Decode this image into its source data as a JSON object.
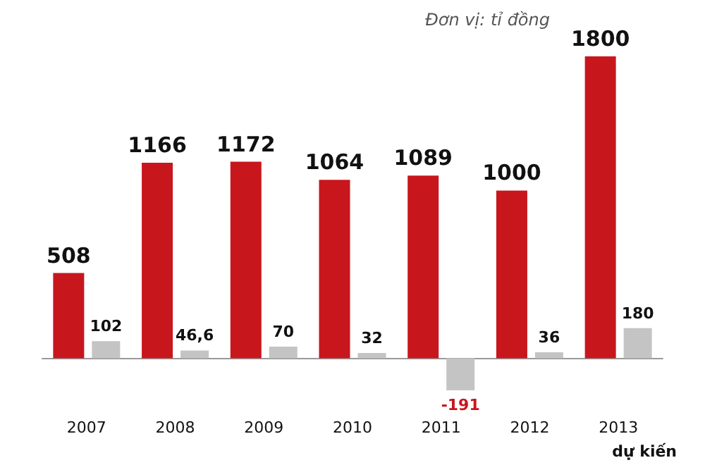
{
  "chart_data": {
    "type": "bar",
    "categories": [
      "2007",
      "2008",
      "2009",
      "2010",
      "2011",
      "2012",
      "2013"
    ],
    "series": [
      {
        "color": "#c8161d",
        "values": [
          508,
          1166,
          1172,
          1064,
          1089,
          1000,
          1800
        ],
        "value_labels": [
          "508",
          "1166",
          "1172",
          "1064",
          "1089",
          "1000",
          "1800"
        ]
      },
      {
        "color": "#c4c4c4",
        "values": [
          102,
          46.6,
          70,
          32,
          -191,
          36,
          180
        ],
        "value_labels": [
          "102",
          "46,6",
          "70",
          "32",
          "-191",
          "36",
          "180"
        ]
      }
    ],
    "annotations": [
      "Đơn vị: tỉ đồng",
      "dự kiến"
    ],
    "grid": false
  }
}
